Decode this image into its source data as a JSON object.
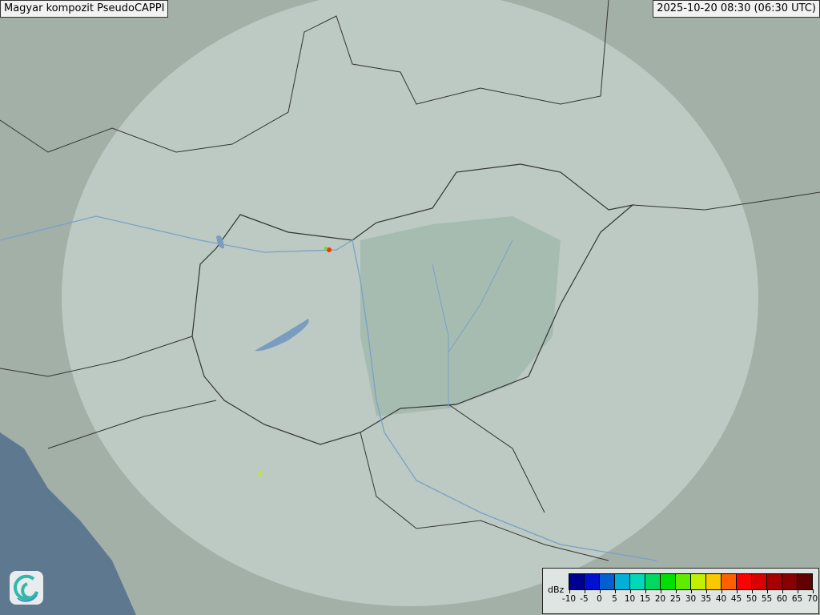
{
  "header": {
    "title": "Magyar kompozit  PseudoCAPPI",
    "timestamp": "2025-10-20 08:30 (06:30 UTC)"
  },
  "legend": {
    "unit": "dBz",
    "ticks": [
      "-10",
      "-5",
      "0",
      "5",
      "10",
      "15",
      "20",
      "25",
      "30",
      "35",
      "40",
      "45",
      "50",
      "55",
      "60",
      "65",
      "70"
    ],
    "colors": [
      "#000090",
      "#0010d0",
      "#0060d0",
      "#00b0d8",
      "#00d8b8",
      "#00d860",
      "#00e000",
      "#60ec00",
      "#c0f000",
      "#f8c800",
      "#ff6000",
      "#ff0000",
      "#d80000",
      "#a80000",
      "#880000",
      "#600000"
    ]
  },
  "colors": {
    "terrain": "#a3b0a8",
    "radar_coverage": "#c6d3cc",
    "lowland": "#9db6aa",
    "sea": "#5e7890",
    "borders": "#333333",
    "rivers": "#7aa0c8"
  },
  "logo": {
    "icon": "swirl-logo-icon"
  }
}
